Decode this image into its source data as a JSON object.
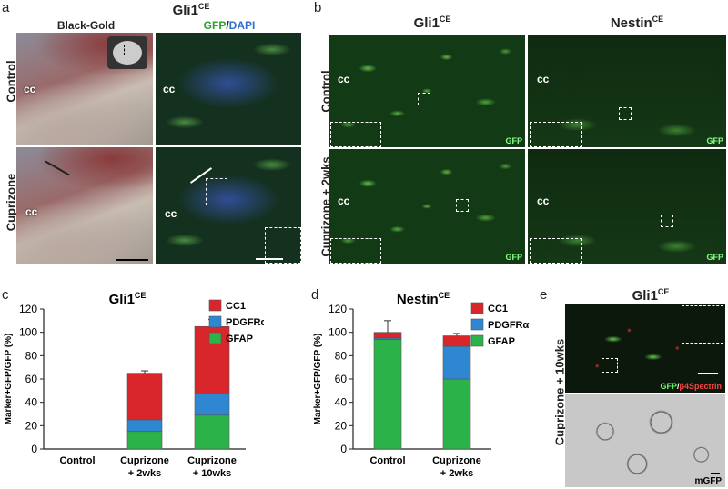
{
  "panels": {
    "a": {
      "label": "a",
      "title_main": "Gli1",
      "title_sup": "CE",
      "col1": "Black-Gold",
      "col2_green": "GFP",
      "col2_slash": "/",
      "col2_blue": "DAPI",
      "rows": [
        "Control",
        "Cuprizone"
      ],
      "cc": "cc"
    },
    "b": {
      "label": "b",
      "col1_main": "Gli1",
      "col1_sup": "CE",
      "col2_main": "Nestin",
      "col2_sup": "CE",
      "rows": [
        "Control",
        "Cuprizone + 2wks"
      ],
      "cc": "cc",
      "gfp_tag": "GFP"
    },
    "c": {
      "label": "c"
    },
    "d": {
      "label": "d"
    },
    "e": {
      "label": "e",
      "title_main": "Gli1",
      "title_sup": "CE",
      "row": "Cuprizone + 10wks",
      "stain_green": "GFP",
      "stain_slash": "/",
      "stain_red": "β4Spectrin",
      "em_label": "mGFP"
    }
  },
  "chart_data": [
    {
      "type": "bar",
      "stacked": true,
      "title": "Gli1",
      "title_sup": "CE",
      "ylabel": "Marker+GFP/GFP (%)",
      "ylim": [
        0,
        120
      ],
      "yticks": [
        0,
        20,
        40,
        60,
        80,
        100,
        120
      ],
      "categories": [
        "Control",
        "Cuprizone + 2wks",
        "Cuprizone + 10wks"
      ],
      "legend": [
        "CC1",
        "PDGFRα",
        "GFAP"
      ],
      "legend_position": "top-left",
      "series": [
        {
          "name": "GFAP",
          "color": "#2bb34a",
          "values": [
            0,
            15,
            29
          ]
        },
        {
          "name": "PDGFRα",
          "color": "#2f86d1",
          "values": [
            0,
            10,
            18
          ]
        },
        {
          "name": "CC1",
          "color": "#d8262b",
          "values": [
            0,
            40,
            58
          ]
        }
      ],
      "errors": {
        "GFAP": [
          0,
          5,
          1.5
        ],
        "PDGFRα": [
          0,
          8,
          2.5
        ],
        "CC1": [
          0,
          2,
          6
        ]
      }
    },
    {
      "type": "bar",
      "stacked": true,
      "title": "Nestin",
      "title_sup": "CE",
      "ylabel": "Marker+GFP/GFP (%)",
      "ylim": [
        0,
        120
      ],
      "yticks": [
        0,
        20,
        40,
        60,
        80,
        100,
        120
      ],
      "categories": [
        "Control",
        "Cuprizone + 2wks"
      ],
      "legend": [
        "CC1",
        "PDGFRα",
        "GFAP"
      ],
      "legend_position": "top-right",
      "series": [
        {
          "name": "GFAP",
          "color": "#2bb34a",
          "values": [
            94,
            60
          ]
        },
        {
          "name": "PDGFRα",
          "color": "#2f86d1",
          "values": [
            1,
            28
          ]
        },
        {
          "name": "CC1",
          "color": "#d8262b",
          "values": [
            5,
            9
          ]
        }
      ],
      "errors": {
        "GFAP": [
          2,
          5
        ],
        "PDGFRα": [
          0,
          1
        ],
        "CC1": [
          10,
          2
        ]
      }
    }
  ]
}
